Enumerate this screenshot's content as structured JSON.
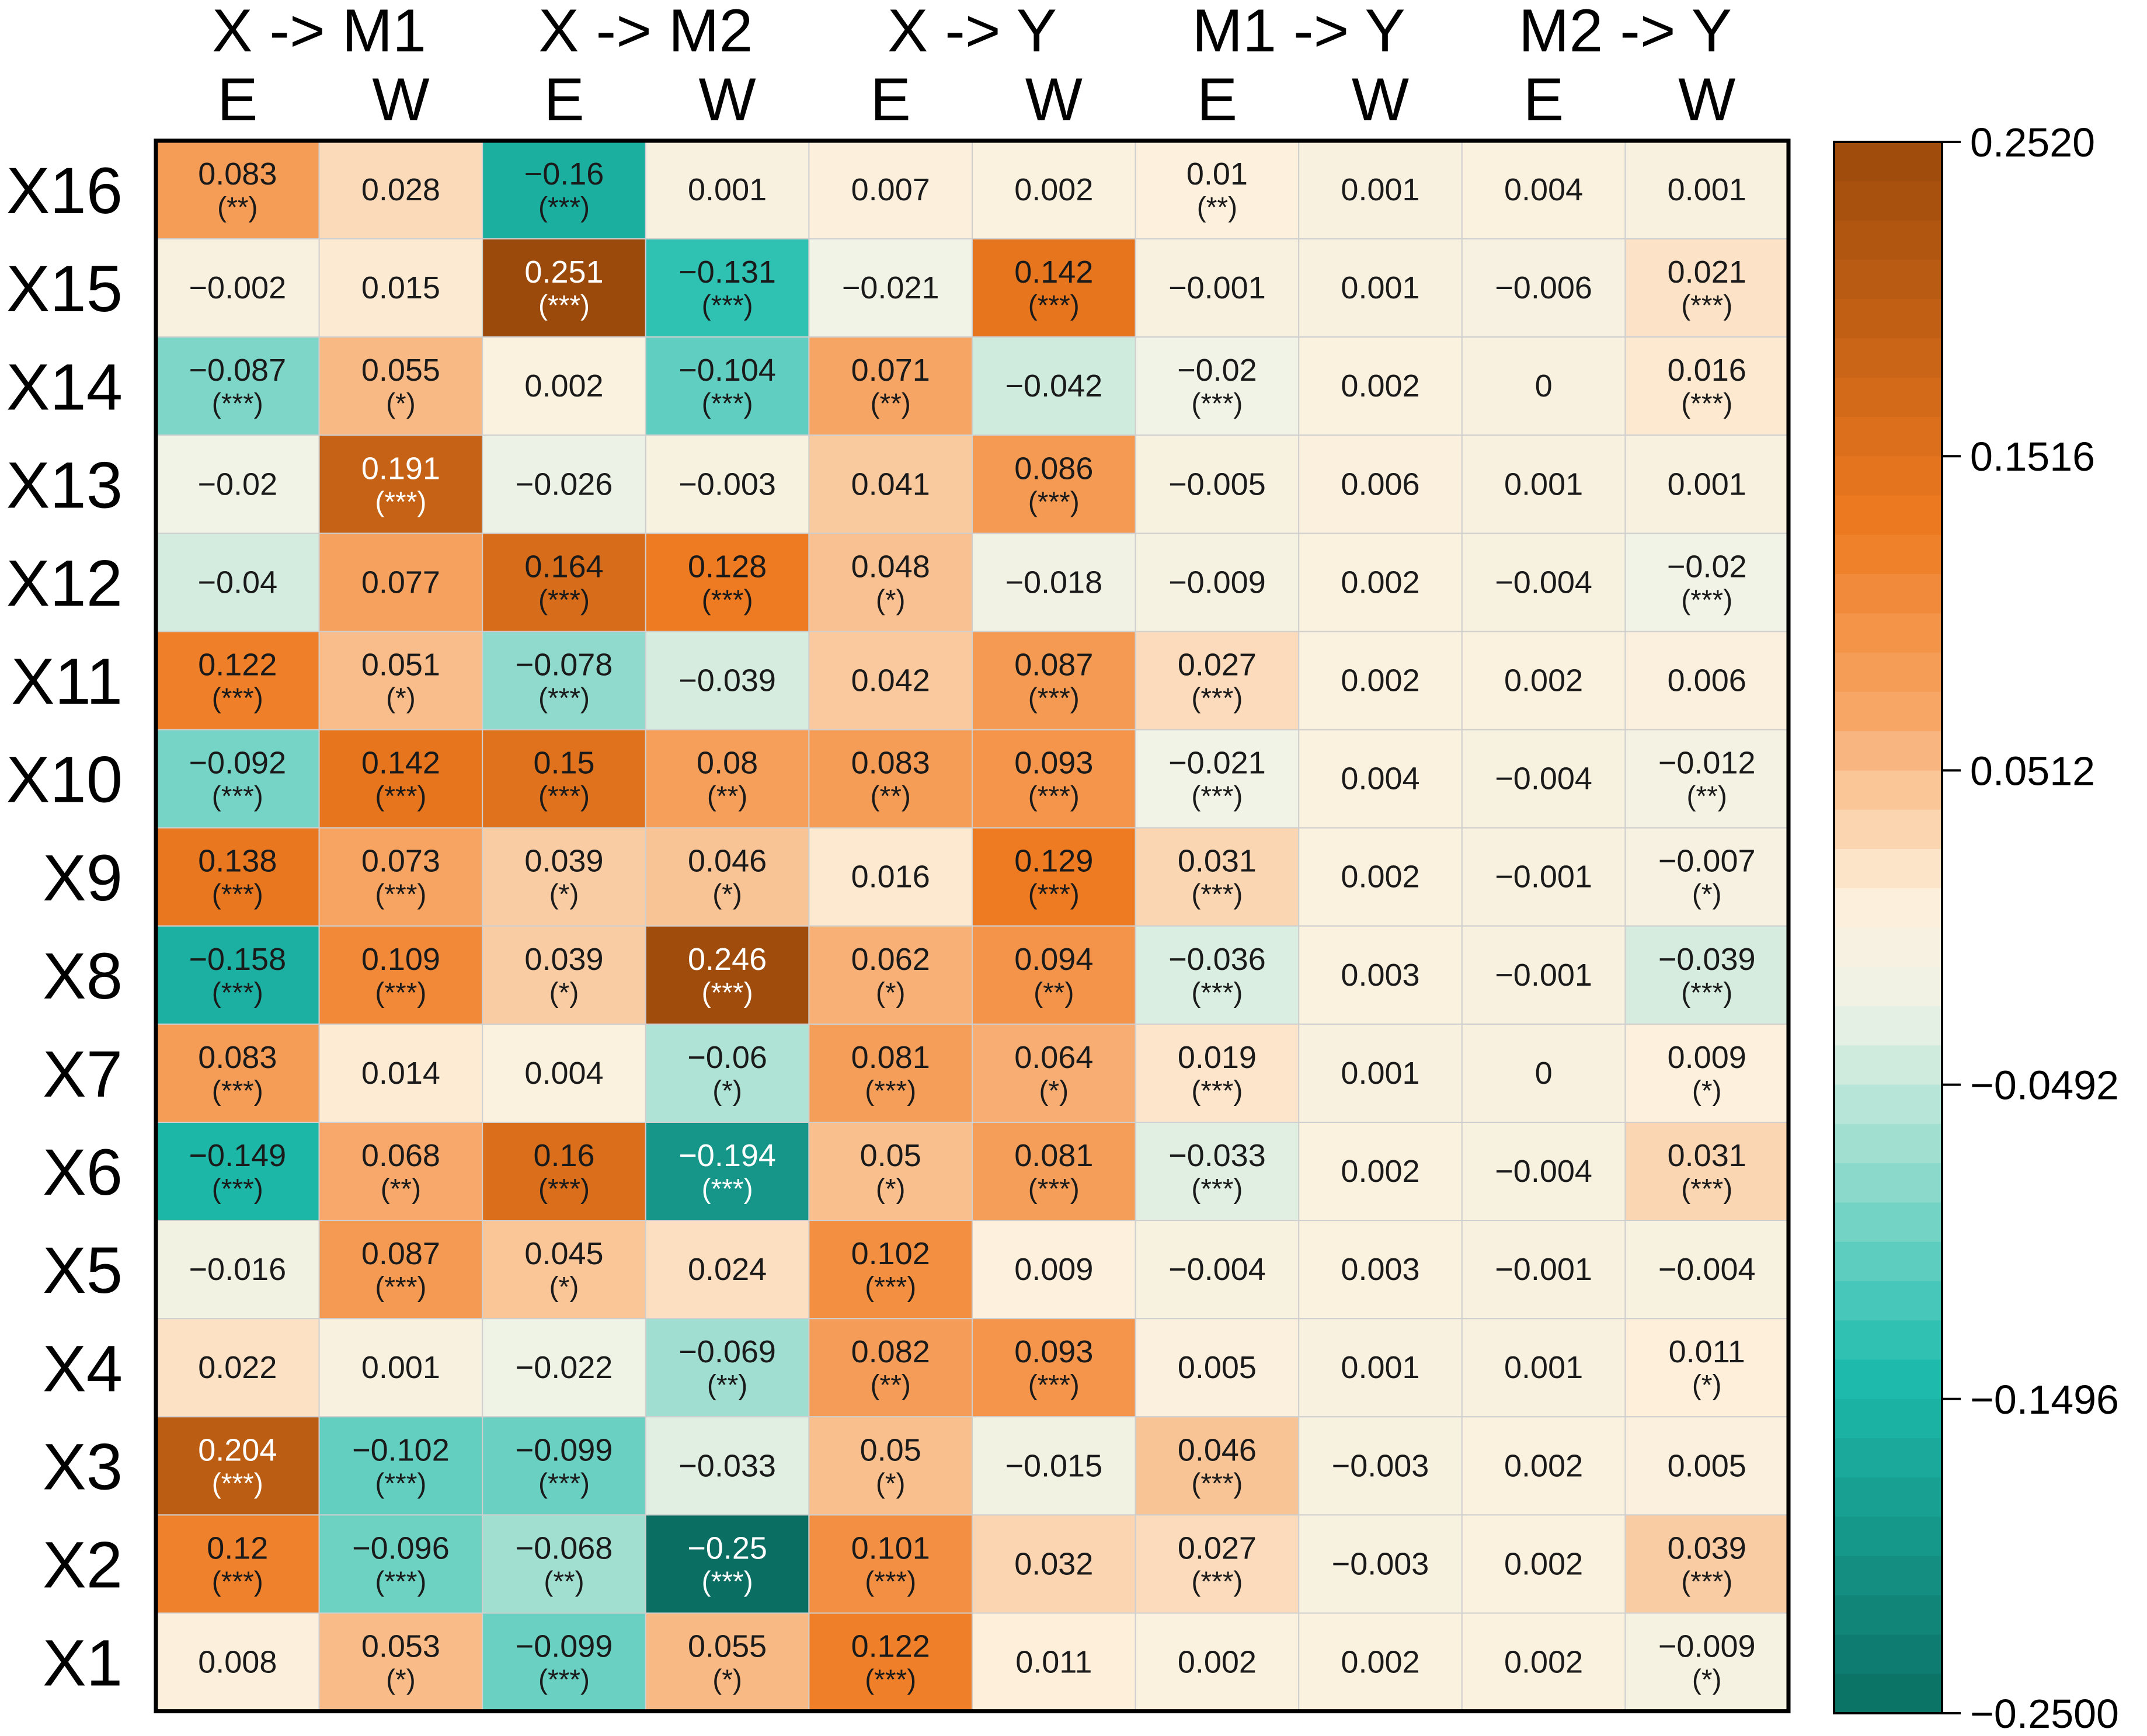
{
  "chart_data": {
    "type": "heatmap",
    "title": "",
    "column_groups": [
      "X -> M1",
      "X -> M2",
      "X -> Y",
      "M1 -> Y",
      "M2 -> Y"
    ],
    "column_subheaders": [
      "E",
      "W"
    ],
    "rows": [
      "X16",
      "X15",
      "X14",
      "X13",
      "X12",
      "X11",
      "X10",
      "X9",
      "X8",
      "X7",
      "X6",
      "X5",
      "X4",
      "X3",
      "X2",
      "X1"
    ],
    "values": [
      [
        "0.083",
        "0.028",
        "−0.16",
        "0.001",
        "0.007",
        "0.002",
        "0.01",
        "0.001",
        "0.004",
        "0.001"
      ],
      [
        "−0.002",
        "0.015",
        "0.251",
        "−0.131",
        "−0.021",
        "0.142",
        "−0.001",
        "0.001",
        "−0.006",
        "0.021"
      ],
      [
        "−0.087",
        "0.055",
        "0.002",
        "−0.104",
        "0.071",
        "−0.042",
        "−0.02",
        "0.002",
        "0",
        "0.016"
      ],
      [
        "−0.02",
        "0.191",
        "−0.026",
        "−0.003",
        "0.041",
        "0.086",
        "−0.005",
        "0.006",
        "0.001",
        "0.001"
      ],
      [
        "−0.04",
        "0.077",
        "0.164",
        "0.128",
        "0.048",
        "−0.018",
        "−0.009",
        "0.002",
        "−0.004",
        "−0.02"
      ],
      [
        "0.122",
        "0.051",
        "−0.078",
        "−0.039",
        "0.042",
        "0.087",
        "0.027",
        "0.002",
        "0.002",
        "0.006"
      ],
      [
        "−0.092",
        "0.142",
        "0.15",
        "0.08",
        "0.083",
        "0.093",
        "−0.021",
        "0.004",
        "−0.004",
        "−0.012"
      ],
      [
        "0.138",
        "0.073",
        "0.039",
        "0.046",
        "0.016",
        "0.129",
        "0.031",
        "0.002",
        "−0.001",
        "−0.007"
      ],
      [
        "−0.158",
        "0.109",
        "0.039",
        "0.246",
        "0.062",
        "0.094",
        "−0.036",
        "0.003",
        "−0.001",
        "−0.039"
      ],
      [
        "0.083",
        "0.014",
        "0.004",
        "−0.06",
        "0.081",
        "0.064",
        "0.019",
        "0.001",
        "0",
        "0.009"
      ],
      [
        "−0.149",
        "0.068",
        "0.16",
        "−0.194",
        "0.05",
        "0.081",
        "−0.033",
        "0.002",
        "−0.004",
        "0.031"
      ],
      [
        "−0.016",
        "0.087",
        "0.045",
        "0.024",
        "0.102",
        "0.009",
        "−0.004",
        "0.003",
        "−0.001",
        "−0.004"
      ],
      [
        "0.022",
        "0.001",
        "−0.022",
        "−0.069",
        "0.082",
        "0.093",
        "0.005",
        "0.001",
        "0.001",
        "0.011"
      ],
      [
        "0.204",
        "−0.102",
        "−0.099",
        "−0.033",
        "0.05",
        "−0.015",
        "0.046",
        "−0.003",
        "0.002",
        "0.005"
      ],
      [
        "0.12",
        "−0.096",
        "−0.068",
        "−0.25",
        "0.101",
        "0.032",
        "0.027",
        "−0.003",
        "0.002",
        "0.039"
      ],
      [
        "0.008",
        "0.053",
        "−0.099",
        "0.055",
        "0.122",
        "0.011",
        "0.002",
        "0.002",
        "0.002",
        "−0.009"
      ]
    ],
    "significance": [
      [
        "(**)",
        "",
        "(***)",
        "",
        "",
        "",
        "(**)",
        "",
        "",
        ""
      ],
      [
        "",
        "",
        "(***)",
        "(***)",
        "",
        "(***)",
        "",
        "",
        "",
        "(***)"
      ],
      [
        "(***)",
        "(*)",
        "",
        "(***)",
        "(**)",
        "",
        "(***)",
        "",
        "",
        "(***)"
      ],
      [
        "",
        "(***)",
        "",
        "",
        "",
        "(***)",
        "",
        "",
        "",
        ""
      ],
      [
        "",
        "",
        "(***)",
        "(***)",
        "(*)",
        "",
        "",
        "",
        "",
        "(***)"
      ],
      [
        "(***)",
        "(*)",
        "(***)",
        "",
        "",
        "(***)",
        "(***)",
        "",
        "",
        ""
      ],
      [
        "(***)",
        "(***)",
        "(***)",
        "(**)",
        "(**)",
        "(***)",
        "(***)",
        "",
        "",
        "(**)"
      ],
      [
        "(***)",
        "(***)",
        "(*)",
        "(*)",
        "",
        "(***)",
        "(***)",
        "",
        "",
        "(*)"
      ],
      [
        "(***)",
        "(***)",
        "(*)",
        "(***)",
        "(*)",
        "(**)",
        "(***)",
        "",
        "",
        "(***)"
      ],
      [
        "(***)",
        "",
        "",
        "(*)",
        "(***)",
        "(*)",
        "(***)",
        "",
        "",
        "(*)"
      ],
      [
        "(***)",
        "(**)",
        "(***)",
        "(***)",
        "(*)",
        "(***)",
        "(***)",
        "",
        "",
        "(***)"
      ],
      [
        "",
        "(***)",
        "(*)",
        "",
        "(***)",
        "",
        "",
        "",
        "",
        ""
      ],
      [
        "",
        "",
        "",
        "(**)",
        "(**)",
        "(***)",
        "",
        "",
        "",
        "(*)"
      ],
      [
        "(***)",
        "(***)",
        "(***)",
        "",
        "(*)",
        "",
        "(***)",
        "",
        "",
        ""
      ],
      [
        "(***)",
        "(***)",
        "(**)",
        "(***)",
        "(***)",
        "",
        "(***)",
        "",
        "",
        "(***)"
      ],
      [
        "",
        "(*)",
        "(***)",
        "(*)",
        "(***)",
        "",
        "",
        "",
        "",
        "(*)"
      ]
    ],
    "colorbar": {
      "min": -0.25,
      "max": 0.252,
      "ticks": [
        "0.2520",
        "0.1516",
        "0.0512",
        "−0.0492",
        "−0.1496",
        "−0.2500"
      ],
      "colors": {
        "low": "#0b6e63",
        "mid_low": "#1fbdae",
        "mid_pale": "#eef3e6",
        "mid_cream": "#fdf0dc",
        "mid_high": "#f7a666",
        "high_orange": "#ee7a20",
        "high": "#9b4a0c"
      }
    }
  }
}
